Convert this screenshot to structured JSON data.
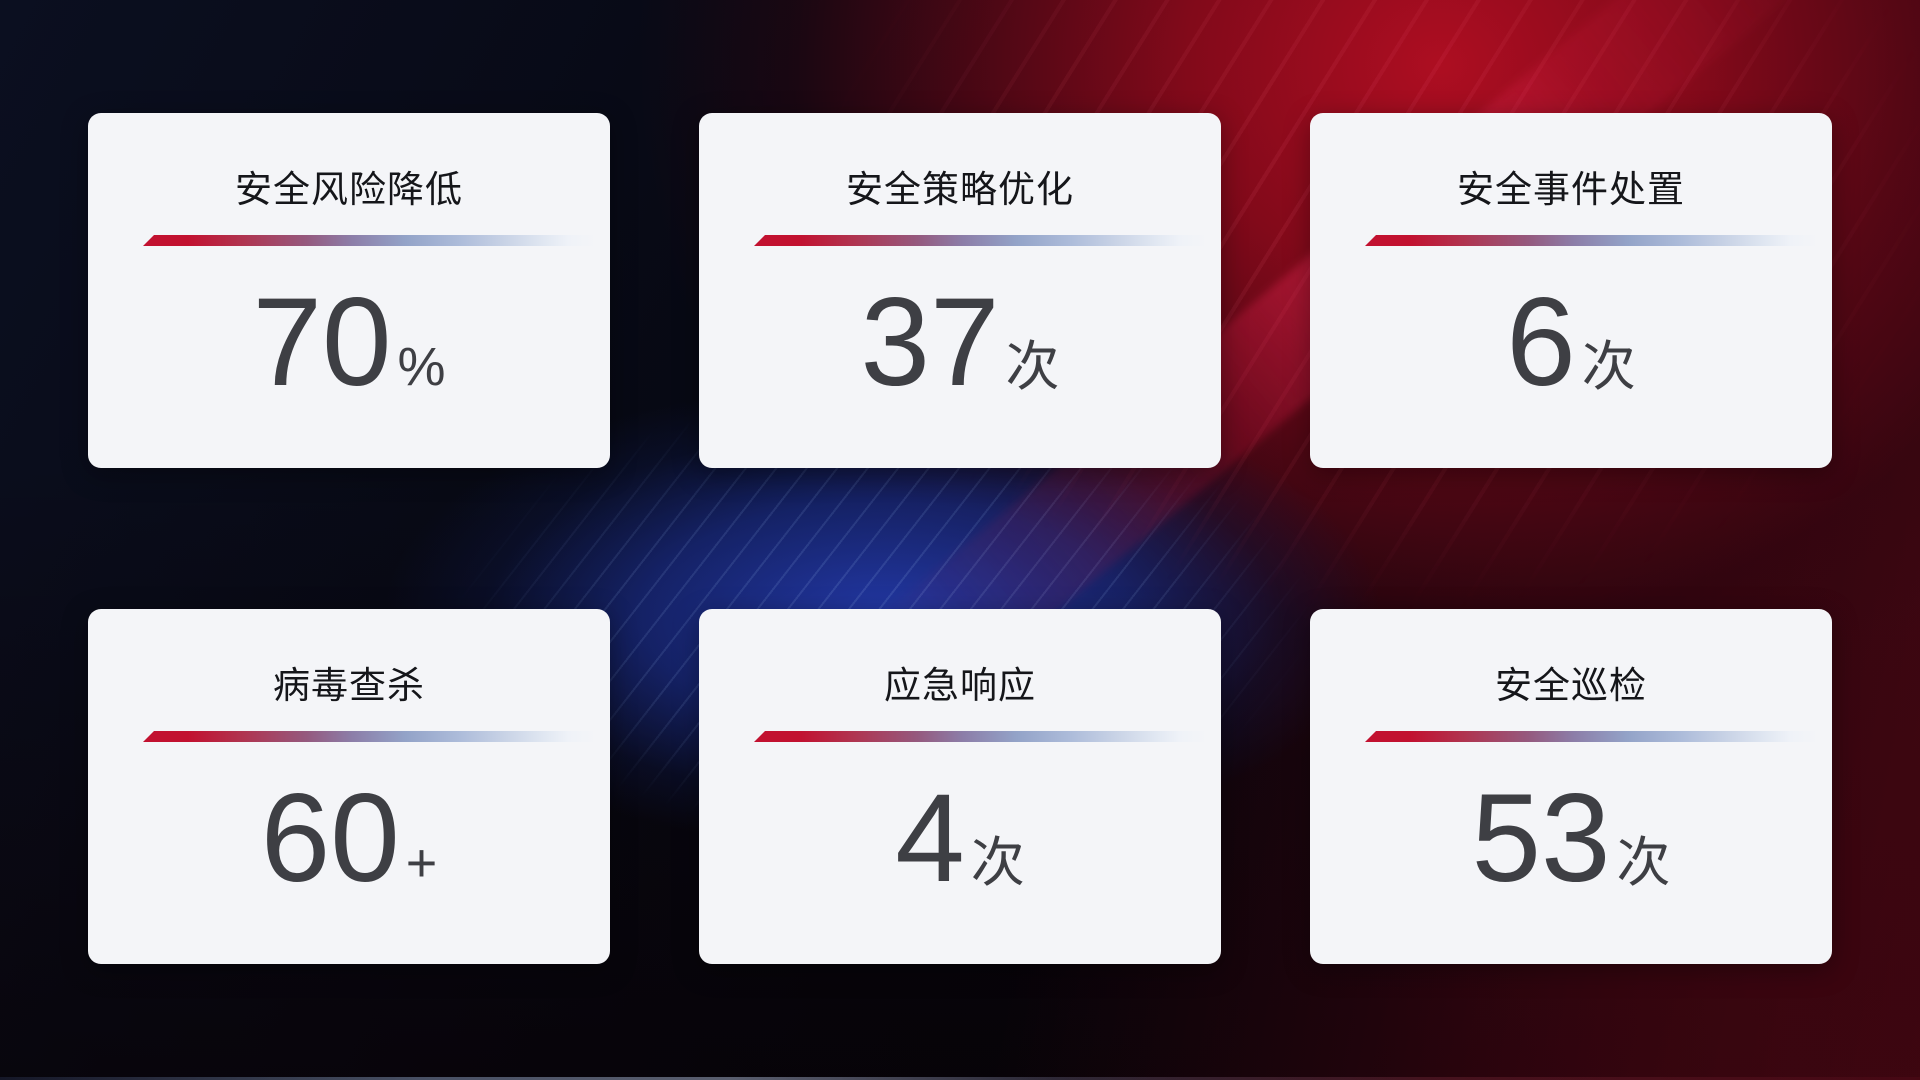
{
  "cards": [
    {
      "title": "安全风险降低",
      "value": "70",
      "unit": "%"
    },
    {
      "title": "安全策略优化",
      "value": "37",
      "unit": "次"
    },
    {
      "title": "安全事件处置",
      "value": "6",
      "unit": "次"
    },
    {
      "title": "病毒查杀",
      "value": "60",
      "unit": "+"
    },
    {
      "title": "应急响应",
      "value": "4",
      "unit": "次"
    },
    {
      "title": "安全巡检",
      "value": "53",
      "unit": "次"
    }
  ],
  "colors": {
    "card_background": "#f4f5f8",
    "title_text": "#15161a",
    "value_text": "#3e3f44",
    "divider_red": "#c21130",
    "divider_blue": "#adbcda",
    "background_dark_navy": "#080a16",
    "background_red": "#a00d22",
    "background_blue_band": "#1b2f96"
  }
}
